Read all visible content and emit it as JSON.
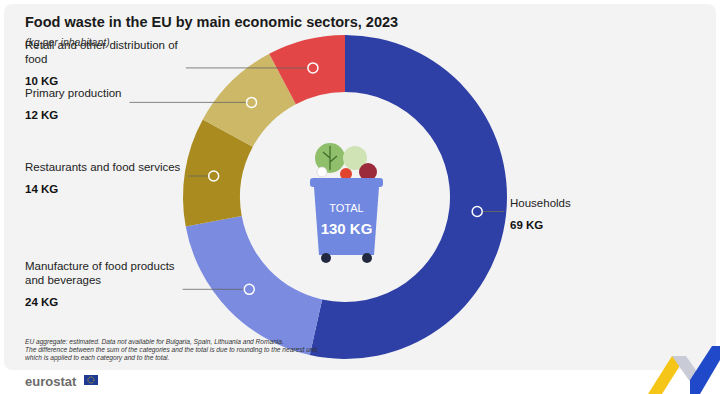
{
  "chart_data": {
    "type": "donut",
    "title": "Food waste in the EU by main economic sectors, 2023",
    "subtitle": "(kg per inhabitant)",
    "categories": [
      "Households",
      "Manufacture of food products and beverages",
      "Restaurants and food services",
      "Primary production",
      "Retail and other distribution of food"
    ],
    "values": [
      69,
      24,
      14,
      12,
      10
    ],
    "value_labels": [
      "69 KG",
      "24 KG",
      "14 KG",
      "12 KG",
      "10 KG"
    ],
    "colors": [
      "#2e3fa6",
      "#7a8be0",
      "#a98b1f",
      "#cdb867",
      "#e24646"
    ],
    "data_labels": true,
    "total": {
      "label": "TOTAL",
      "value": 130,
      "value_label": "130 KG"
    },
    "notes": [
      "EU aggregate: estimated. Data not available for Bulgaria, Spain, Lithuania and Romania.",
      "The difference between the sum of the categories and the total is due to rounding to the nearest unit,",
      "which is applied to each category and to the total."
    ],
    "source": "eurostat"
  }
}
